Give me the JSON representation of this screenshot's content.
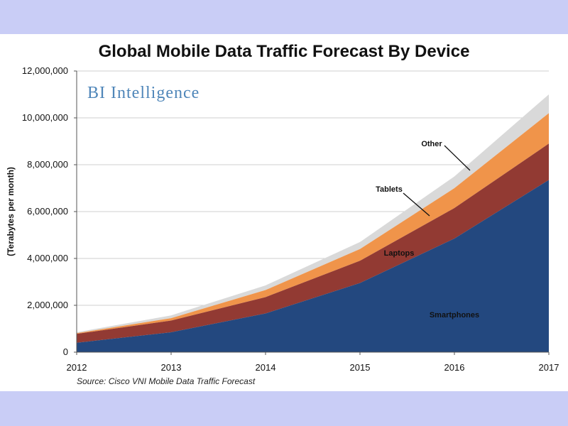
{
  "chart_data": {
    "type": "area",
    "stacked": true,
    "title": "Global Mobile Data Traffic Forecast By Device",
    "ylabel": "(Terabytes per month)",
    "source": "Source: Cisco VNI Mobile Data Traffic Forecast",
    "brand": "BI Intelligence",
    "x": [
      "2012",
      "2013",
      "2014",
      "2015",
      "2016",
      "2017"
    ],
    "yticks": [
      "0",
      "2,000,000",
      "4,000,000",
      "6,000,000",
      "8,000,000",
      "10,000,000",
      "12,000,000"
    ],
    "ylim": [
      0,
      12000000
    ],
    "grid": true,
    "series": [
      {
        "name": "Smartphones",
        "color": "#23487f",
        "values": [
          400000,
          850000,
          1650000,
          2950000,
          4850000,
          7350000
        ]
      },
      {
        "name": "Laptops",
        "color": "#923a33",
        "values": [
          380000,
          500000,
          700000,
          950000,
          1300000,
          1550000
        ]
      },
      {
        "name": "Tablets",
        "color": "#f0944a",
        "values": [
          30000,
          100000,
          300000,
          500000,
          850000,
          1300000
        ]
      },
      {
        "name": "Other",
        "color": "#d9d9d9",
        "values": [
          40000,
          120000,
          200000,
          300000,
          500000,
          800000
        ]
      }
    ]
  }
}
